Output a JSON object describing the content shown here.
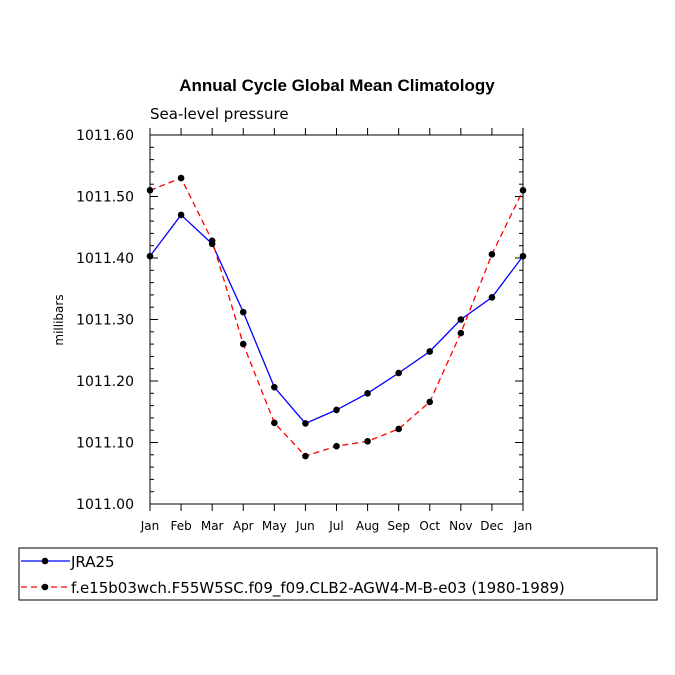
{
  "chart_data": {
    "type": "line",
    "title": "Annual Cycle Global Mean Climatology",
    "subtitle": "Sea-level pressure",
    "xlabel": "",
    "ylabel": "millibars",
    "categories": [
      "Jan",
      "Feb",
      "Mar",
      "Apr",
      "May",
      "Jun",
      "Jul",
      "Aug",
      "Sep",
      "Oct",
      "Nov",
      "Dec",
      "Jan"
    ],
    "ylim": [
      1011.0,
      1011.6
    ],
    "yticks": [
      "1011.00",
      "1011.10",
      "1011.20",
      "1011.30",
      "1011.40",
      "1011.50",
      "1011.60"
    ],
    "series": [
      {
        "name": "JRA25",
        "color": "#0000ff",
        "dash": "solid",
        "values": [
          1011.403,
          1011.47,
          1011.423,
          1011.312,
          1011.19,
          1011.131,
          1011.153,
          1011.18,
          1011.213,
          1011.248,
          1011.3,
          1011.336,
          1011.403
        ]
      },
      {
        "name": "f.e15b03wch.F55W5SC.f09_f09.CLB2-AGW4-M-B-e03 (1980-1989)",
        "color": "#ff0000",
        "dash": "dashed",
        "values": [
          1011.51,
          1011.53,
          1011.428,
          1011.26,
          1011.132,
          1011.078,
          1011.094,
          1011.102,
          1011.122,
          1011.166,
          1011.278,
          1011.406,
          1011.51
        ]
      }
    ],
    "legend": {
      "entries": [
        "JRA25",
        "f.e15b03wch.F55W5SC.f09_f09.CLB2-AGW4-M-B-e03 (1980-1989)"
      ],
      "placement": "below"
    }
  }
}
